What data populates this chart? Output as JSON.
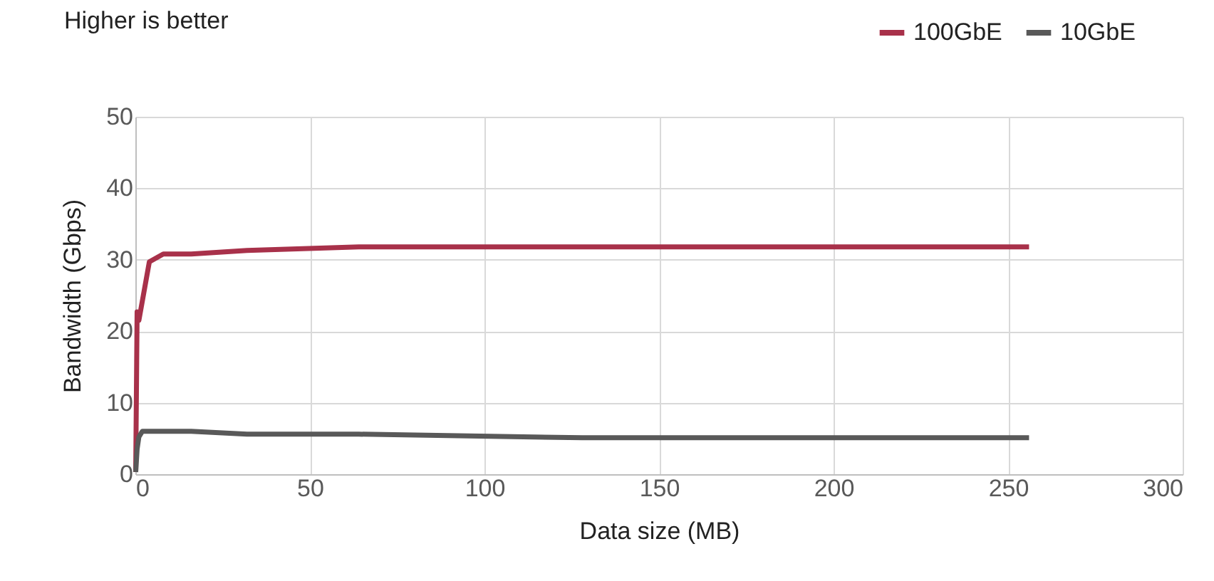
{
  "chart_data": {
    "type": "line",
    "title": "Higher is better",
    "xlabel": "Data size (MB)",
    "ylabel": "Bandwidth (Gbps)",
    "xlim": [
      0,
      300
    ],
    "xticks": [
      0,
      50,
      100,
      150,
      200,
      250,
      300
    ],
    "ylim": [
      0,
      50
    ],
    "yticks": [
      0,
      10,
      20,
      30,
      40,
      50
    ],
    "grid": true,
    "legend": "top right",
    "marker": "none",
    "line_style": "solid",
    "series": [
      {
        "name": "100GbE",
        "color": "#a8314a",
        "x": [
          0.1,
          0.5,
          1,
          4,
          8,
          16,
          32,
          64,
          128,
          256
        ],
        "values": [
          0.3,
          22.7,
          21.5,
          29.7,
          30.8,
          30.8,
          31.3,
          31.8,
          31.8,
          31.8
        ]
      },
      {
        "name": "10GbE",
        "color": "#595959",
        "x": [
          0.1,
          0.5,
          1,
          2,
          4,
          8,
          16,
          32,
          64,
          128,
          256
        ],
        "values": [
          0.3,
          3.5,
          5.2,
          6,
          6,
          6,
          6,
          5.6,
          5.6,
          5.1,
          5.1
        ]
      }
    ]
  }
}
